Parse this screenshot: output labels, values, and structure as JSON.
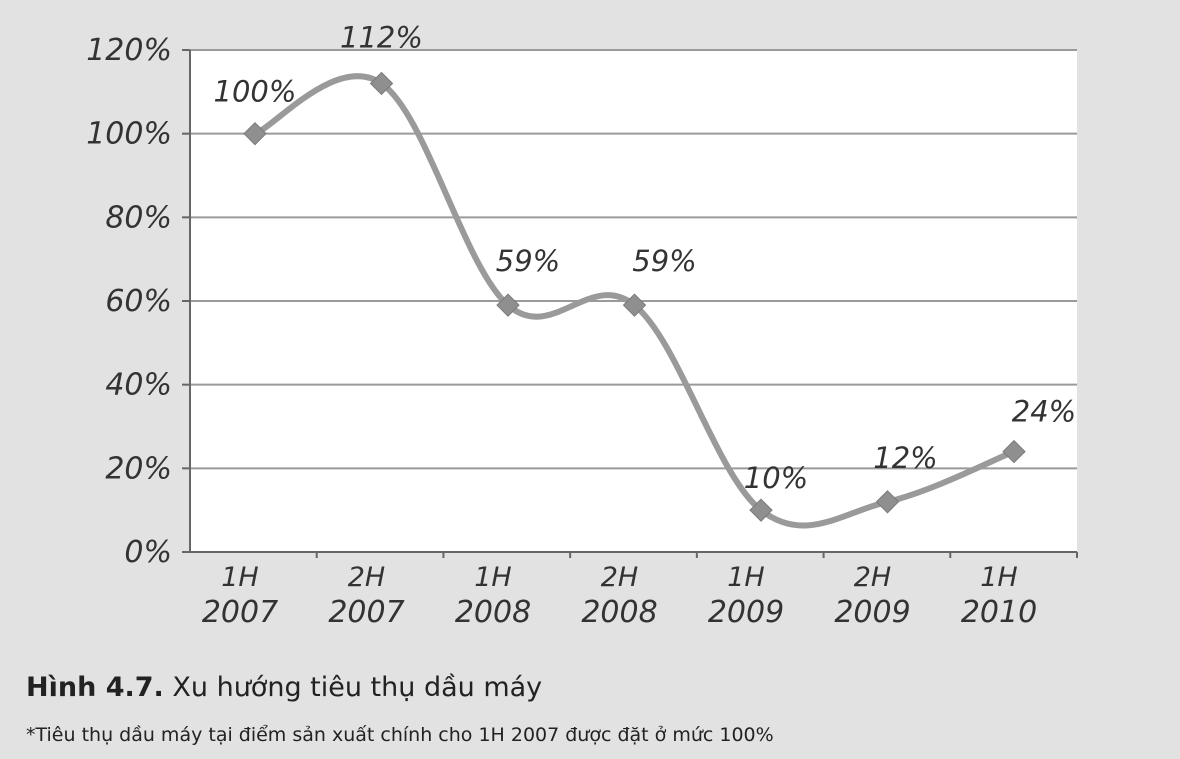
{
  "chart_data": {
    "type": "line",
    "categories": [
      [
        "1H",
        "2007"
      ],
      [
        "2H",
        "2007"
      ],
      [
        "1H",
        "2008"
      ],
      [
        "2H",
        "2008"
      ],
      [
        "1H",
        "2009"
      ],
      [
        "2H",
        "2009"
      ],
      [
        "1H",
        "2010"
      ]
    ],
    "values": [
      100,
      112,
      59,
      59,
      10,
      12,
      24
    ],
    "data_labels": [
      "100%",
      "112%",
      "59%",
      "59%",
      "10%",
      "12%",
      "24%"
    ],
    "y_ticks": [
      0,
      20,
      40,
      60,
      80,
      100,
      120
    ],
    "y_tick_labels": [
      "0%",
      "20%",
      "40%",
      "60%",
      "80%",
      "100%",
      "120%"
    ],
    "ylim": [
      0,
      120
    ],
    "grid": true,
    "colors": {
      "line": "#9a9a9a",
      "marker": "#8f8f8f",
      "plot_bg": "#ffffff",
      "grid": "#9a9a9a",
      "axis": "#666666"
    }
  },
  "caption": {
    "figure_label": "Hình 4.7.",
    "title": "Xu hướng tiêu thụ dầu máy",
    "note": "*Tiêu thụ dầu máy tại điểm sản xuất chính cho 1H 2007 được đặt ở mức 100%"
  }
}
